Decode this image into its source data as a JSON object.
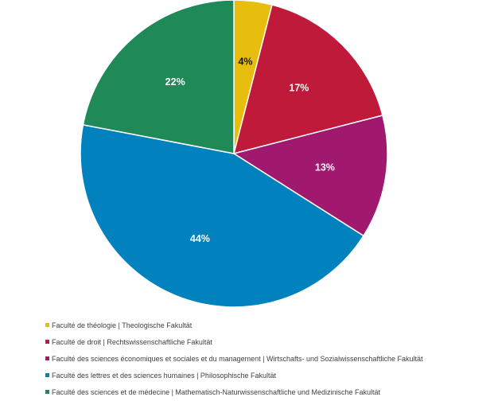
{
  "chart_data": {
    "type": "pie",
    "title": "",
    "categories": [
      "Faculté de théologie | Theologische Fakultät",
      "Faculté de droit | Rechtswissenschaftliche Fakultät",
      "Faculté des sciences économiques et sociales et du management | Wirtschafts- und Sozialwissenschaftliche Fakultät",
      "Faculté des lettres et des sciences humaines | Philosophische Fakultät",
      "Faculté des sciences et de médecine | Mathematisch-Naturwissenschaftliche und Medizinische Fakultät"
    ],
    "values": [
      4,
      17,
      13,
      44,
      22
    ],
    "data_labels": [
      "4%",
      "17%",
      "13%",
      "44%",
      "22%"
    ],
    "colors": [
      "#E8BE0E",
      "#C01A3A",
      "#A0196E",
      "#0281BF",
      "#1F8A57"
    ],
    "label_colors": [
      "#1a1a1a",
      "#ffffff",
      "#ffffff",
      "#ffffff",
      "#ffffff"
    ],
    "start": "12 o'clock, clockwise",
    "legend_position": "bottom-left"
  }
}
